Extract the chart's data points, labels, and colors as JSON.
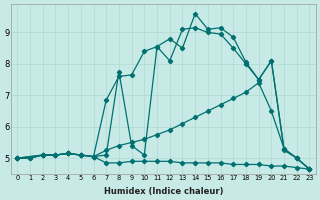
{
  "xlabel": "Humidex (Indice chaleur)",
  "bg_color": "#c8eae6",
  "line_color": "#007070",
  "grid_color": "#b0d8d4",
  "xlim": [
    -0.5,
    23.5
  ],
  "ylim": [
    4.5,
    9.9
  ],
  "xticks": [
    0,
    1,
    2,
    3,
    4,
    5,
    6,
    7,
    8,
    9,
    10,
    11,
    12,
    13,
    14,
    15,
    16,
    17,
    18,
    19,
    20,
    21,
    22,
    23
  ],
  "yticks": [
    5,
    6,
    7,
    8,
    9
  ],
  "line1_x": [
    0,
    1,
    2,
    3,
    4,
    5,
    6,
    7,
    8,
    9,
    10,
    11,
    12,
    13,
    14,
    15,
    16,
    17,
    18,
    19,
    20,
    21,
    22,
    23
  ],
  "line1_y": [
    5.0,
    5.0,
    5.1,
    5.1,
    5.15,
    5.1,
    5.05,
    4.85,
    4.85,
    4.9,
    4.9,
    4.9,
    4.9,
    4.85,
    4.85,
    4.85,
    4.85,
    4.8,
    4.8,
    4.8,
    4.75,
    4.75,
    4.7,
    4.65
  ],
  "line2_x": [
    0,
    1,
    2,
    3,
    4,
    5,
    6,
    7,
    8,
    9,
    10,
    11,
    12,
    13,
    14,
    15,
    16,
    17,
    18,
    19,
    20,
    21,
    22,
    23
  ],
  "line2_y": [
    5.0,
    5.0,
    5.1,
    5.1,
    5.15,
    5.1,
    5.05,
    5.25,
    5.4,
    5.5,
    5.6,
    5.75,
    5.9,
    6.1,
    6.3,
    6.5,
    6.7,
    6.9,
    7.1,
    7.4,
    6.5,
    5.3,
    5.0,
    4.65
  ],
  "line3_x": [
    0,
    2,
    3,
    4,
    5,
    6,
    7,
    8,
    9,
    10,
    11,
    12,
    13,
    14,
    15,
    16,
    17,
    18,
    19,
    20,
    21,
    22,
    23
  ],
  "line3_y": [
    5.0,
    5.1,
    5.1,
    5.15,
    5.1,
    5.05,
    6.85,
    7.6,
    7.65,
    8.4,
    8.55,
    8.1,
    9.1,
    9.15,
    9.0,
    8.95,
    8.5,
    8.0,
    7.5,
    8.1,
    5.3,
    5.0,
    4.65
  ],
  "line4_x": [
    0,
    2,
    3,
    4,
    5,
    6,
    7,
    8,
    9,
    10,
    11,
    12,
    13,
    14,
    15,
    16,
    17,
    18,
    19,
    20,
    21,
    22,
    23
  ],
  "line4_y": [
    5.0,
    5.1,
    5.1,
    5.15,
    5.1,
    5.05,
    5.1,
    7.75,
    5.4,
    5.1,
    8.55,
    8.8,
    8.5,
    9.6,
    9.1,
    9.15,
    8.85,
    8.05,
    7.5,
    8.1,
    5.25,
    5.0,
    4.65
  ]
}
